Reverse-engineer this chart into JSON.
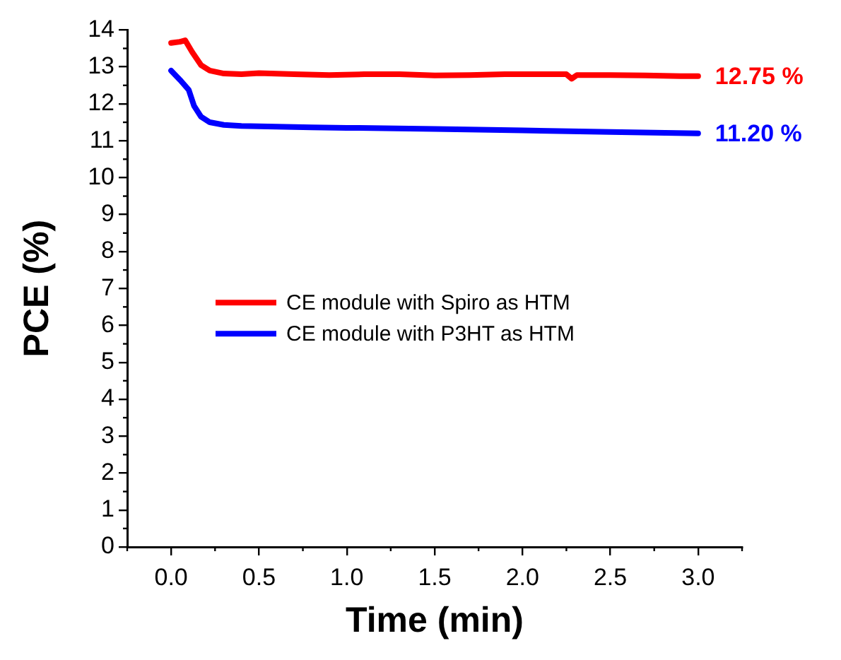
{
  "chart_data": {
    "type": "line",
    "xlabel": "Time (min)",
    "ylabel": "PCE (%)",
    "xlim": [
      -0.25,
      3.25
    ],
    "xticks": [
      {
        "value": 0,
        "label": "0.0"
      },
      0.5,
      {
        "value": 1,
        "label": "1.0"
      },
      1.5,
      {
        "value": 2,
        "label": "2.0"
      },
      2.5,
      {
        "value": 3,
        "label": "3.0"
      }
    ],
    "ylim": [
      0,
      14
    ],
    "yticks": [
      0,
      1,
      2,
      3,
      4,
      5,
      6,
      7,
      8,
      9,
      10,
      11,
      12,
      13,
      14
    ],
    "grid": false,
    "legend": "center",
    "line_style": "solid",
    "marker": "none",
    "series": [
      {
        "name": "CE module with Spiro as HTM",
        "color": "#ff0000",
        "x": [
          0,
          0.05,
          0.08,
          0.12,
          0.17,
          0.22,
          0.3,
          0.4,
          0.5,
          0.7,
          0.9,
          1.1,
          1.3,
          1.5,
          1.7,
          1.9,
          2.1,
          2.25,
          2.28,
          2.31,
          2.5,
          2.7,
          2.9,
          3.0
        ],
        "values": [
          13.65,
          13.68,
          13.72,
          13.4,
          13.05,
          12.9,
          12.82,
          12.8,
          12.83,
          12.8,
          12.78,
          12.8,
          12.8,
          12.77,
          12.78,
          12.8,
          12.8,
          12.8,
          12.68,
          12.78,
          12.78,
          12.77,
          12.75,
          12.75
        ]
      },
      {
        "name": "CE module with P3HT as HTM",
        "color": "#0000ff",
        "x": [
          0,
          0.05,
          0.1,
          0.13,
          0.17,
          0.22,
          0.3,
          0.4,
          0.6,
          0.8,
          1.0,
          1.5,
          2.0,
          2.5,
          3.0
        ],
        "values": [
          12.9,
          12.65,
          12.38,
          11.95,
          11.65,
          11.5,
          11.43,
          11.4,
          11.38,
          11.36,
          11.35,
          11.32,
          11.28,
          11.24,
          11.2
        ]
      }
    ],
    "annotations": [
      {
        "text": "12.75 %",
        "x": 3.0,
        "y": 12.75
      },
      {
        "text": "11.20 %",
        "x": 3.0,
        "y": 11.2
      }
    ]
  }
}
